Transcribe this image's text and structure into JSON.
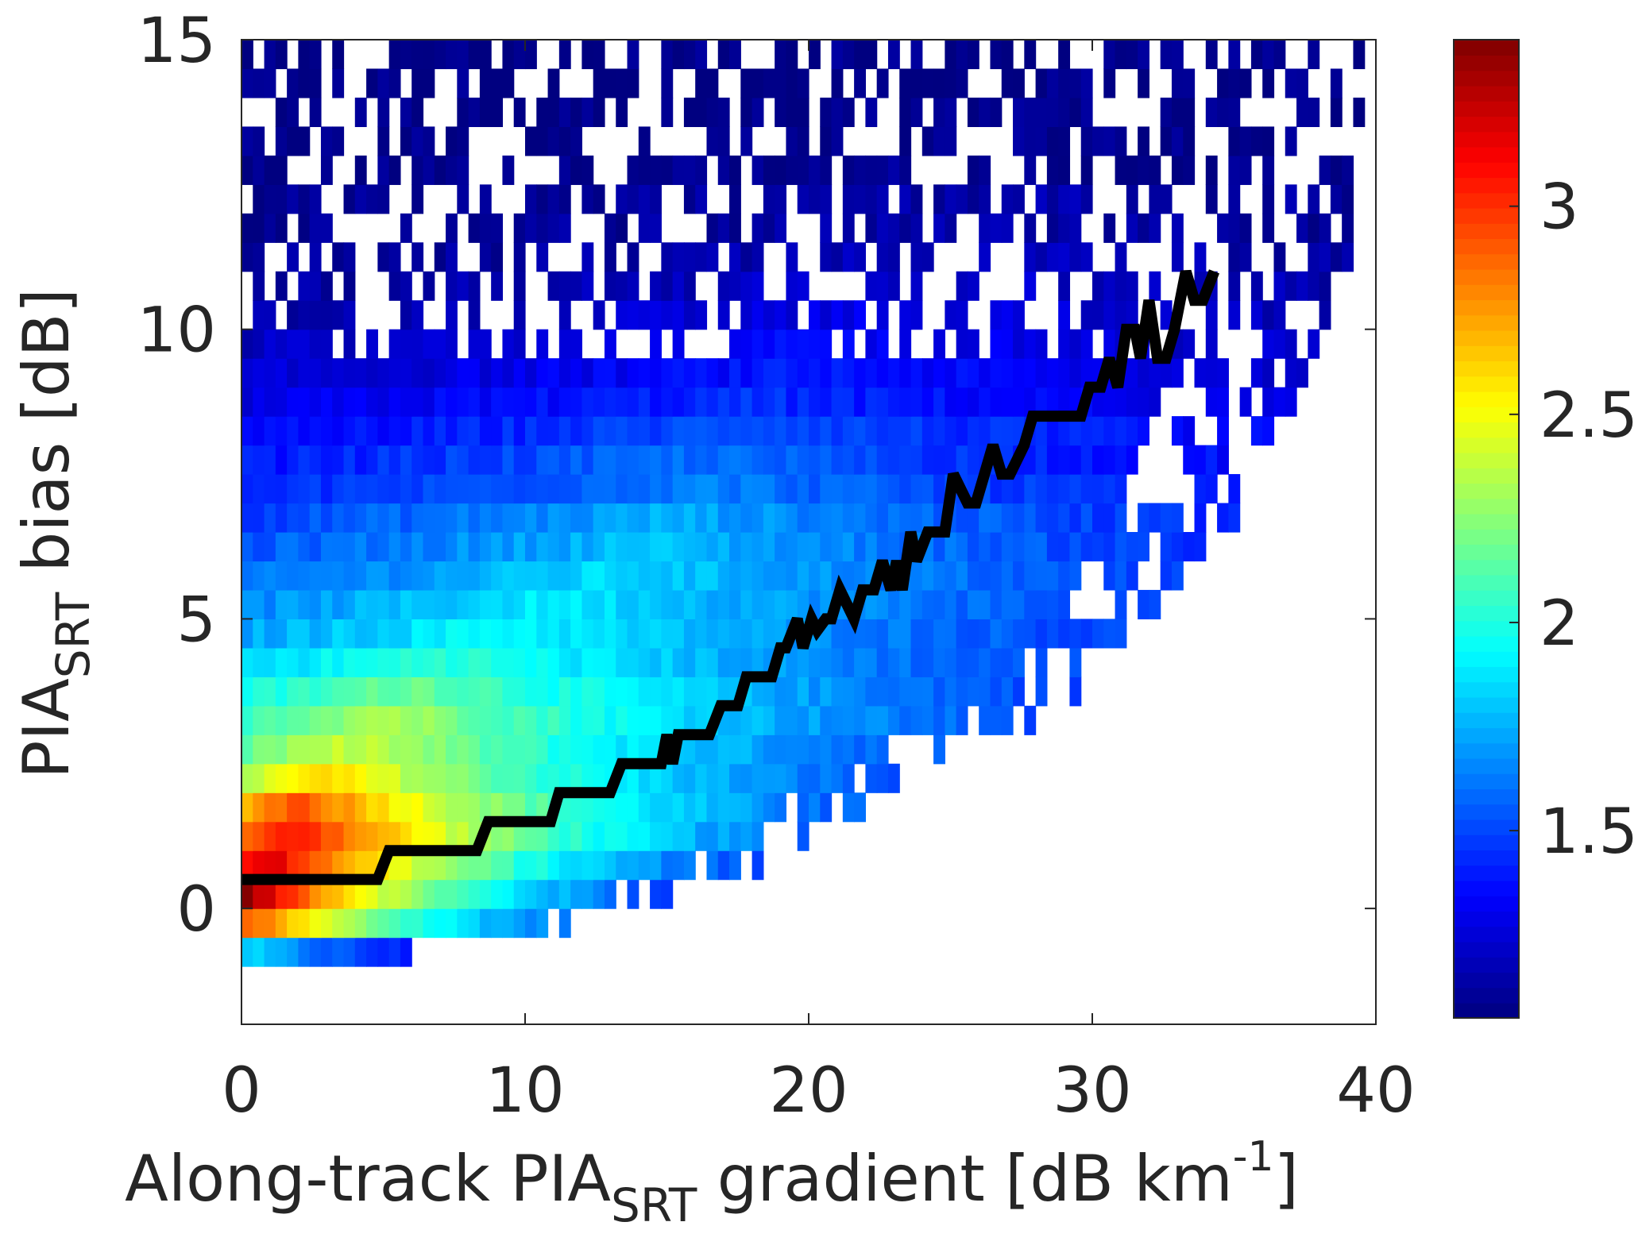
{
  "chart_data": {
    "type": "heatmap",
    "title": "",
    "xlabel": {
      "main": "Along-track PIA",
      "sub": "SRT",
      "after": " gradient [dB km",
      "sup": "-1",
      "close": "]"
    },
    "ylabel": {
      "main": "PIA",
      "sub": "SRT",
      "after": " bias [dB]"
    },
    "xlim": [
      0,
      40
    ],
    "ylim": [
      -2,
      15
    ],
    "xticks": [
      {
        "value": 0,
        "label": "0"
      },
      {
        "value": 10,
        "label": "10"
      },
      {
        "value": 20,
        "label": "20"
      },
      {
        "value": 30,
        "label": "30"
      },
      {
        "value": 40,
        "label": "40"
      }
    ],
    "yticks": [
      {
        "value": 0,
        "label": "0"
      },
      {
        "value": 5,
        "label": "5"
      },
      {
        "value": 10,
        "label": "10"
      },
      {
        "value": 15,
        "label": "15"
      }
    ],
    "grid": false,
    "colormap": "jet",
    "colorbar": {
      "range": [
        1.05,
        3.4
      ],
      "ticks": [
        {
          "value": 1.5,
          "label": "1.5"
        },
        {
          "value": 2,
          "label": "2"
        },
        {
          "value": 2.5,
          "label": "2.5"
        },
        {
          "value": 3,
          "label": "3"
        }
      ]
    },
    "heatmap": {
      "x_bin_width": 0.4,
      "y_bin_height": 0.5,
      "y_bin_centers": [
        -0.75,
        -0.25,
        0.25,
        0.75,
        1.25,
        1.75,
        2.25,
        2.75,
        3.25,
        3.75,
        4.25,
        4.75,
        5.25,
        5.75,
        6.25,
        6.75,
        7.25,
        7.75,
        8.25,
        8.75,
        9.25,
        9.75,
        10.25,
        10.75,
        11.25,
        11.75,
        12.25,
        12.75,
        13.25,
        13.75,
        14.25,
        14.75
      ],
      "rows": [
        {
          "y": -0.75,
          "x_max": 6.2,
          "peak_value": 1.85,
          "center": 0.0,
          "decay": 0.16
        },
        {
          "y": -0.25,
          "x_max": 11.8,
          "peak_value": 2.95,
          "center": 0.0,
          "decay": 0.12
        },
        {
          "y": 0.25,
          "x_max": 15.2,
          "peak_value": 3.4,
          "center": 0.0,
          "decay": 0.12
        },
        {
          "y": 0.75,
          "x_max": 18.2,
          "peak_value": 3.2,
          "center": 1.0,
          "decay": 0.1
        },
        {
          "y": 1.25,
          "x_max": 20.5,
          "peak_value": 3.1,
          "center": 2.0,
          "decay": 0.085
        },
        {
          "y": 1.75,
          "x_max": 22.0,
          "peak_value": 2.95,
          "center": 2.0,
          "decay": 0.075
        },
        {
          "y": 2.25,
          "x_max": 24.0,
          "peak_value": 2.6,
          "center": 3.0,
          "decay": 0.065
        },
        {
          "y": 2.75,
          "x_max": 26.0,
          "peak_value": 2.4,
          "center": 4.0,
          "decay": 0.055
        },
        {
          "y": 3.25,
          "x_max": 28.0,
          "peak_value": 2.35,
          "center": 5.0,
          "decay": 0.05
        },
        {
          "y": 3.75,
          "x_max": 29.5,
          "peak_value": 2.2,
          "center": 6.0,
          "decay": 0.045
        },
        {
          "y": 4.25,
          "x_max": 30.5,
          "peak_value": 2.05,
          "center": 7.0,
          "decay": 0.04
        },
        {
          "y": 4.75,
          "x_max": 31.5,
          "peak_value": 1.95,
          "center": 9.0,
          "decay": 0.036
        },
        {
          "y": 5.25,
          "x_max": 32.5,
          "peak_value": 1.9,
          "center": 11.0,
          "decay": 0.034
        },
        {
          "y": 5.75,
          "x_max": 33.5,
          "peak_value": 1.85,
          "center": 13.0,
          "decay": 0.034
        },
        {
          "y": 6.25,
          "x_max": 34.0,
          "peak_value": 1.8,
          "center": 14.0,
          "decay": 0.034
        },
        {
          "y": 6.75,
          "x_max": 35.0,
          "peak_value": 1.75,
          "center": 15.0,
          "decay": 0.034
        },
        {
          "y": 7.25,
          "x_max": 35.5,
          "peak_value": 1.65,
          "center": 16.0,
          "decay": 0.034
        },
        {
          "y": 7.75,
          "x_max": 36.0,
          "peak_value": 1.6,
          "center": 16.0,
          "decay": 0.034
        },
        {
          "y": 8.25,
          "x_max": 36.5,
          "peak_value": 1.55,
          "center": 18.0,
          "decay": 0.036
        },
        {
          "y": 8.75,
          "x_max": 37.0,
          "peak_value": 1.45,
          "center": 18.0,
          "decay": 0.036
        },
        {
          "y": 9.25,
          "x_max": 37.5,
          "peak_value": 1.4,
          "center": 20.0,
          "decay": 0.04
        },
        {
          "y": 9.75,
          "x_max": 38.0,
          "peak_value": 1.35,
          "center": 20.0,
          "decay": 0.04
        },
        {
          "y": 10.25,
          "x_max": 38.5,
          "peak_value": 1.3,
          "center": 22.0,
          "decay": 0.045
        },
        {
          "y": 10.75,
          "x_max": 38.5,
          "peak_value": 1.25,
          "center": 24.0,
          "decay": 0.05
        },
        {
          "y": 11.25,
          "x_max": 39.0,
          "peak_value": 1.2,
          "center": 26.0,
          "decay": 0.05
        },
        {
          "y": 11.75,
          "x_max": 40.0,
          "peak_value": 1.15,
          "center": 26.0,
          "decay": 0.05
        },
        {
          "y": 12.25,
          "x_max": 39.0,
          "peak_value": 1.15,
          "center": 28.0,
          "decay": 0.05
        },
        {
          "y": 12.75,
          "x_max": 39.0,
          "peak_value": 1.1,
          "center": 28.0,
          "decay": 0.05
        },
        {
          "y": 13.25,
          "x_max": 39.0,
          "peak_value": 1.1,
          "center": 28.0,
          "decay": 0.05
        },
        {
          "y": 13.75,
          "x_max": 39.5,
          "peak_value": 1.08,
          "center": 28.0,
          "decay": 0.05
        },
        {
          "y": 14.25,
          "x_max": 39.5,
          "peak_value": 1.08,
          "center": 28.0,
          "decay": 0.05
        },
        {
          "y": 14.75,
          "x_max": 39.5,
          "peak_value": 1.08,
          "center": 28.0,
          "decay": 0.05
        }
      ]
    },
    "series": [
      {
        "type": "line",
        "color": "#000000",
        "x": [
          0,
          4.8,
          5.2,
          8.3,
          8.7,
          10.9,
          11.2,
          13.0,
          13.4,
          14.8,
          15.0,
          15.2,
          15.4,
          16.5,
          16.9,
          17.5,
          17.8,
          18.7,
          19.0,
          19.2,
          19.6,
          19.8,
          20.1,
          20.3,
          20.6,
          20.8,
          21.1,
          21.6,
          21.9,
          22.3,
          22.6,
          22.9,
          23.1,
          23.3,
          23.6,
          23.8,
          24.2,
          24.8,
          25.1,
          25.6,
          25.9,
          26.2,
          26.5,
          26.8,
          27.1,
          27.6,
          27.9,
          29.6,
          29.9,
          30.3,
          30.6,
          30.9,
          31.2,
          31.5,
          31.7,
          32.0,
          32.3,
          32.6,
          32.9,
          33.3,
          33.6,
          33.9,
          34.3
        ],
        "y": [
          0.5,
          0.5,
          1.0,
          1.0,
          1.5,
          1.5,
          2.0,
          2.0,
          2.5,
          2.5,
          3.0,
          2.5,
          3.0,
          3.0,
          3.5,
          3.5,
          4.0,
          4.0,
          4.5,
          4.5,
          5.0,
          4.5,
          5.0,
          4.8,
          5.0,
          5.0,
          5.5,
          5.0,
          5.5,
          5.5,
          6.0,
          5.5,
          6.0,
          5.5,
          6.5,
          6.0,
          6.5,
          6.5,
          7.5,
          7.0,
          7.0,
          7.5,
          8.0,
          7.5,
          7.5,
          8.0,
          8.5,
          8.5,
          9.0,
          9.0,
          9.5,
          9.0,
          10.0,
          10.0,
          9.5,
          10.5,
          9.5,
          9.5,
          10.0,
          11.0,
          10.5,
          10.5,
          11.0
        ]
      }
    ]
  }
}
